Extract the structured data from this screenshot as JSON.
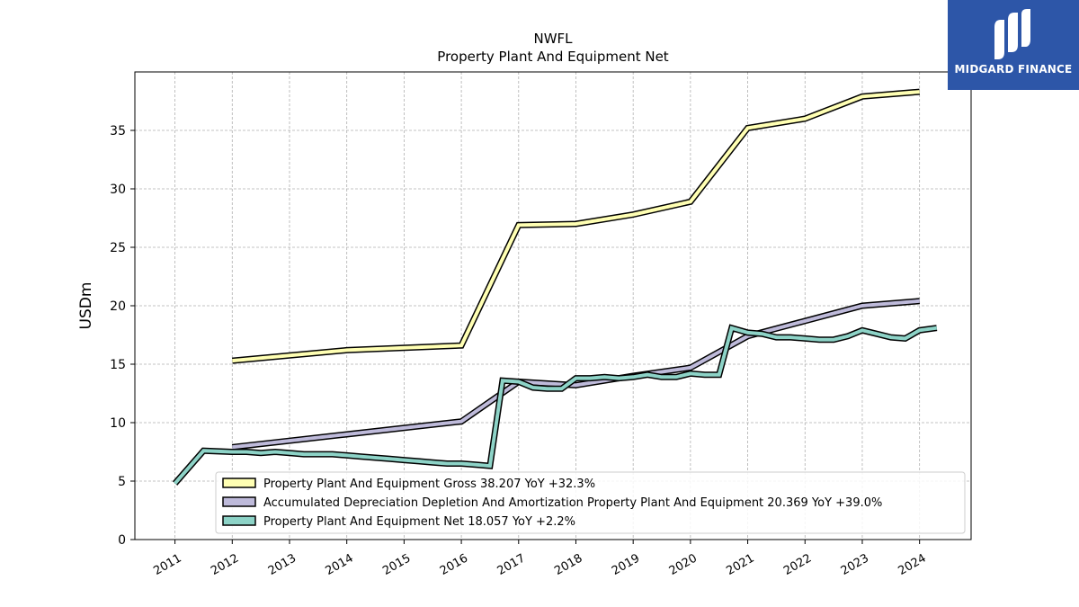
{
  "logo": {
    "text": "MIDGARD FINANCE"
  },
  "chart_data": {
    "type": "line",
    "title": "NWFL",
    "subtitle": "Property Plant And Equipment Net",
    "xlabel": "",
    "ylabel": "USDm",
    "ylim": [
      0,
      40
    ],
    "xlim": [
      2010.3,
      2024.9
    ],
    "yticks": [
      0,
      5,
      10,
      15,
      20,
      25,
      30,
      35
    ],
    "xticks": [
      "2011",
      "2012",
      "2013",
      "2014",
      "2015",
      "2016",
      "2017",
      "2018",
      "2019",
      "2020",
      "2021",
      "2022",
      "2023",
      "2024"
    ],
    "grid": true,
    "legend_position": "lower-right",
    "series": [
      {
        "name": "Property Plant And Equipment Gross  38.207 YoY +32.3%",
        "color": "#ffffb3",
        "x": [
          2012.0,
          2014.0,
          2016.0,
          2017.0,
          2018.0,
          2019.0,
          2020.0,
          2021.0,
          2022.0,
          2023.0,
          2024.0
        ],
        "y": [
          15.3,
          16.2,
          16.6,
          26.9,
          27.0,
          27.8,
          28.9,
          35.2,
          36.0,
          37.9,
          38.3
        ]
      },
      {
        "name": "Accumulated Depreciation Depletion And Amortization Property Plant And Equipment  20.369 YoY +39.0%",
        "color": "#bebada",
        "x": [
          2012.0,
          2014.0,
          2016.0,
          2017.0,
          2018.0,
          2019.0,
          2020.0,
          2021.0,
          2022.0,
          2023.0,
          2024.0
        ],
        "y": [
          7.9,
          9.0,
          10.1,
          13.5,
          13.2,
          14.0,
          14.7,
          17.4,
          18.7,
          20.0,
          20.4
        ]
      },
      {
        "name": "Property Plant And Equipment Net  18.057 YoY +2.2%",
        "color": "#8dd3c7",
        "x": [
          2011.0,
          2011.5,
          2012.0,
          2012.25,
          2012.5,
          2012.75,
          2013.0,
          2013.25,
          2013.5,
          2013.75,
          2014.0,
          2014.25,
          2014.5,
          2014.75,
          2015.0,
          2015.25,
          2015.5,
          2015.75,
          2016.0,
          2016.25,
          2016.5,
          2016.72,
          2017.0,
          2017.25,
          2017.5,
          2017.75,
          2018.0,
          2018.25,
          2018.5,
          2018.75,
          2019.0,
          2019.25,
          2019.5,
          2019.75,
          2020.0,
          2020.25,
          2020.5,
          2020.72,
          2021.0,
          2021.25,
          2021.5,
          2021.75,
          2022.0,
          2022.25,
          2022.5,
          2022.75,
          2023.0,
          2023.25,
          2023.5,
          2023.75,
          2024.0,
          2024.3
        ],
        "y": [
          4.8,
          7.6,
          7.5,
          7.5,
          7.4,
          7.5,
          7.4,
          7.3,
          7.3,
          7.3,
          7.2,
          7.1,
          7.0,
          6.9,
          6.8,
          6.7,
          6.6,
          6.5,
          6.5,
          6.4,
          6.3,
          13.6,
          13.5,
          13.0,
          12.9,
          12.9,
          13.8,
          13.8,
          13.9,
          13.8,
          13.9,
          14.1,
          13.9,
          13.9,
          14.2,
          14.1,
          14.1,
          18.1,
          17.7,
          17.6,
          17.3,
          17.3,
          17.2,
          17.1,
          17.1,
          17.4,
          17.9,
          17.6,
          17.3,
          17.2,
          17.9,
          18.1
        ]
      }
    ]
  }
}
